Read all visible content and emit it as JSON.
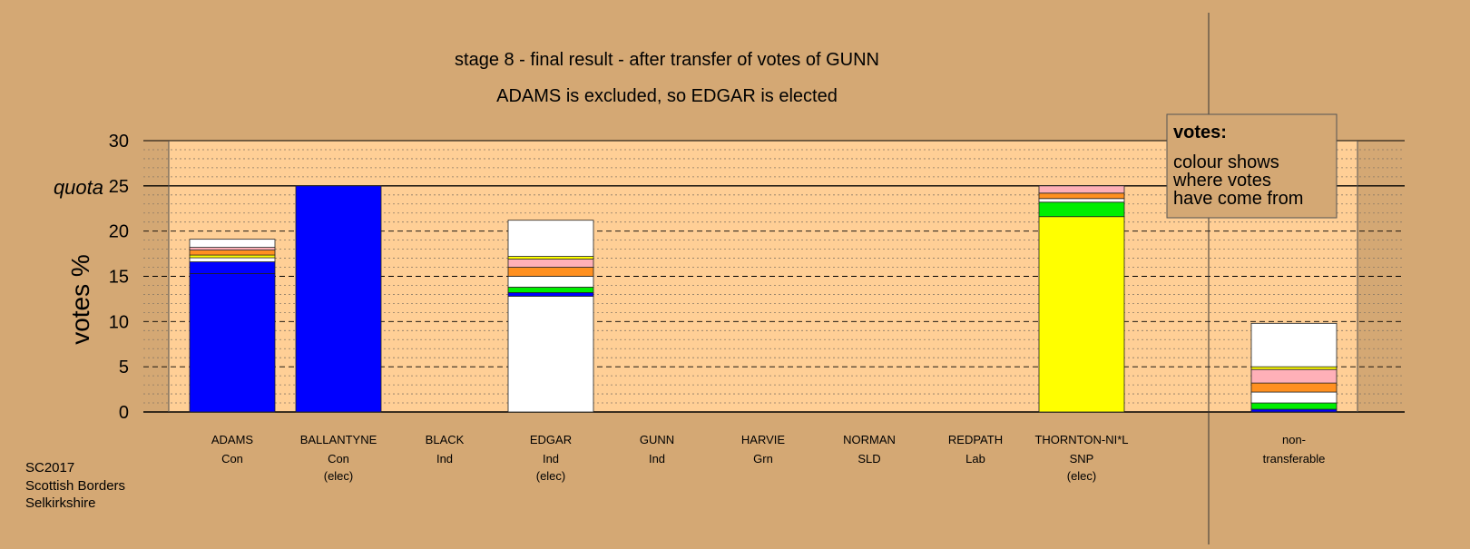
{
  "chart_data": {
    "type": "bar",
    "title": "stage 8 - final result - after transfer of votes of GUNN",
    "subtitle": "ADAMS is excluded, so EDGAR is elected",
    "ylabel": "votes %",
    "quota_label": "quota",
    "quota": 25,
    "ylim": [
      0,
      30
    ],
    "yticks": [
      0,
      5,
      10,
      15,
      20,
      25,
      30
    ],
    "grid": true,
    "legend": {
      "title": "votes:",
      "lines": [
        "colour shows",
        "where votes",
        "have come from"
      ],
      "placement": "top-right"
    },
    "footer": [
      "SC2017",
      "Scottish Borders",
      "Selkirkshire"
    ],
    "candidates": [
      {
        "name": "ADAMS",
        "party": "Con",
        "status": "",
        "segments": [
          {
            "value": 15.3,
            "color": "#0000ff"
          },
          {
            "value": 1.3,
            "color": "#0000ff"
          },
          {
            "value": 0.45,
            "color": "#ffffff"
          },
          {
            "value": 0.3,
            "color": "#ffff00"
          },
          {
            "value": 0.55,
            "color": "#ff9020"
          },
          {
            "value": 0.3,
            "color": "#ffb0b8"
          },
          {
            "value": 0.9,
            "color": "#ffffff"
          }
        ]
      },
      {
        "name": "BALLANTYNE",
        "party": "Con",
        "status": "(elec)",
        "segments": [
          {
            "value": 25.0,
            "color": "#0000ff"
          }
        ]
      },
      {
        "name": "BLACK",
        "party": "Ind",
        "status": "",
        "segments": []
      },
      {
        "name": "EDGAR",
        "party": "Ind",
        "status": "(elec)",
        "segments": [
          {
            "value": 12.8,
            "color": "#ffffff"
          },
          {
            "value": 0.4,
            "color": "#0000ff"
          },
          {
            "value": 0.6,
            "color": "#00ee00"
          },
          {
            "value": 1.2,
            "color": "#ffffff"
          },
          {
            "value": 1.0,
            "color": "#ff9020"
          },
          {
            "value": 0.9,
            "color": "#ffb0b8"
          },
          {
            "value": 0.3,
            "color": "#ffff00"
          },
          {
            "value": 4.0,
            "color": "#ffffff"
          }
        ]
      },
      {
        "name": "GUNN",
        "party": "Ind",
        "status": "",
        "segments": []
      },
      {
        "name": "HARVIE",
        "party": "Grn",
        "status": "",
        "segments": []
      },
      {
        "name": "NORMAN",
        "party": "SLD",
        "status": "",
        "segments": []
      },
      {
        "name": "REDPATH",
        "party": "Lab",
        "status": "",
        "segments": []
      },
      {
        "name": "THORNTON-NI*L",
        "party": "SNP",
        "status": "(elec)",
        "segments": [
          {
            "value": 21.6,
            "color": "#ffff00"
          },
          {
            "value": 1.6,
            "color": "#00ee00"
          },
          {
            "value": 0.4,
            "color": "#ffffff"
          },
          {
            "value": 0.6,
            "color": "#ff9020"
          },
          {
            "value": 0.8,
            "color": "#ffb0b8"
          }
        ]
      }
    ],
    "nontransferable": {
      "name": "non-",
      "name2": "transferable",
      "segments": [
        {
          "value": 0.3,
          "color": "#0000ff"
        },
        {
          "value": 0.7,
          "color": "#00ee00"
        },
        {
          "value": 1.2,
          "color": "#ffffff"
        },
        {
          "value": 1.0,
          "color": "#ff9020"
        },
        {
          "value": 1.5,
          "color": "#ffb0b8"
        },
        {
          "value": 0.3,
          "color": "#ffff00"
        },
        {
          "value": 4.8,
          "color": "#ffffff"
        }
      ]
    },
    "colors": {
      "background": "#d4a874",
      "plot_area": "#ffcf96",
      "legend_box": "#d4a874"
    }
  }
}
